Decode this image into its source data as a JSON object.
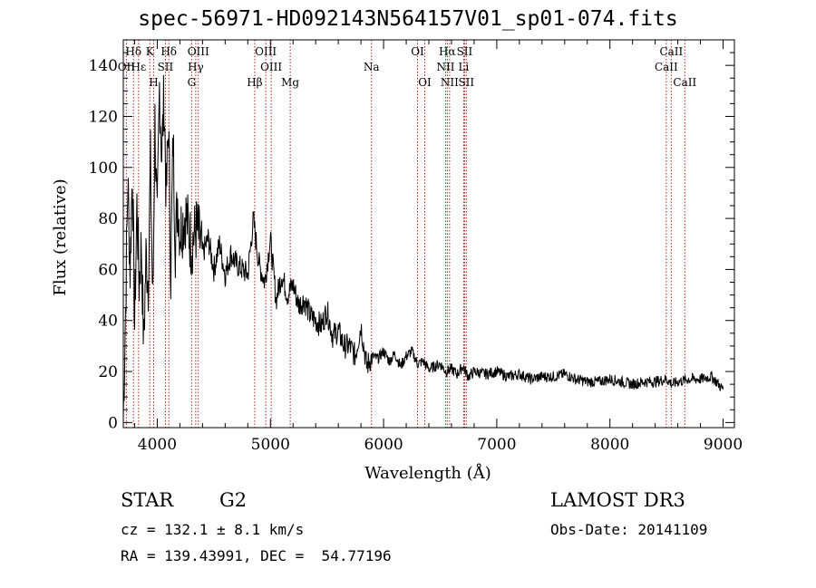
{
  "title": "spec-56971-HD092143N564157V01_sp01-074.fits",
  "footer": {
    "class_label": "STAR",
    "subclass": "G2",
    "cz": "cz = 132.1 ± 8.1 km/s",
    "radec": "RA = 139.43991, DEC =  54.77196",
    "survey": "LAMOST DR3",
    "obs_date": "Obs-Date: 20141109"
  },
  "chart_data": {
    "type": "line",
    "title": "spec-56971-HD092143N564157V01_sp01-074.fits",
    "xlabel": "Wavelength (Å)",
    "ylabel": "Flux (relative)",
    "xlim": [
      3700,
      9100
    ],
    "ylim": [
      -2,
      150
    ],
    "xticks": [
      4000,
      5000,
      6000,
      7000,
      8000,
      9000
    ],
    "yticks": [
      0,
      20,
      40,
      60,
      80,
      100,
      120,
      140
    ],
    "series": [
      {
        "name": "flux",
        "x": [
          3700,
          3720,
          3740,
          3760,
          3780,
          3800,
          3820,
          3840,
          3860,
          3880,
          3900,
          3920,
          3940,
          3960,
          3980,
          4000,
          4020,
          4040,
          4060,
          4080,
          4100,
          4120,
          4140,
          4160,
          4180,
          4200,
          4250,
          4300,
          4350,
          4400,
          4450,
          4500,
          4550,
          4600,
          4650,
          4700,
          4750,
          4800,
          4850,
          4870,
          4900,
          4950,
          5000,
          5050,
          5100,
          5150,
          5200,
          5250,
          5300,
          5350,
          5400,
          5450,
          5500,
          5550,
          5600,
          5650,
          5700,
          5750,
          5800,
          5850,
          5900,
          5950,
          6000,
          6050,
          6100,
          6150,
          6200,
          6250,
          6300,
          6350,
          6400,
          6450,
          6500,
          6550,
          6600,
          6650,
          6700,
          6750,
          6800,
          6900,
          7000,
          7100,
          7200,
          7300,
          7400,
          7500,
          7600,
          7700,
          7800,
          7900,
          8000,
          8100,
          8200,
          8300,
          8400,
          8500,
          8550,
          8600,
          8700,
          8800,
          8900,
          9000
        ],
        "y": [
          2,
          45,
          95,
          60,
          100,
          38,
          85,
          55,
          70,
          30,
          65,
          55,
          102,
          45,
          118,
          75,
          132,
          105,
          128,
          88,
          118,
          58,
          112,
          70,
          88,
          75,
          82,
          70,
          76,
          66,
          72,
          60,
          70,
          58,
          66,
          62,
          60,
          58,
          80,
          72,
          62,
          55,
          72,
          48,
          58,
          50,
          54,
          46,
          48,
          42,
          40,
          38,
          44,
          34,
          36,
          30,
          30,
          26,
          38,
          22,
          26,
          25,
          28,
          24,
          27,
          22,
          26,
          28,
          23,
          24,
          21,
          22,
          23,
          20,
          21,
          19,
          22,
          18,
          20,
          19,
          20,
          18,
          19,
          17,
          18,
          18,
          19,
          17,
          16,
          16,
          17,
          16,
          15,
          16,
          16,
          17,
          15,
          16,
          17,
          17,
          18,
          13
        ]
      }
    ],
    "lines": [
      {
        "label": "Hδ",
        "x": 3790,
        "row": 1
      },
      {
        "label": "K",
        "x": 3934,
        "row": 1
      },
      {
        "label": "Hδ",
        "x": 4102,
        "row": 1
      },
      {
        "label": "OIII",
        "x": 4363,
        "row": 1
      },
      {
        "label": "OIII",
        "x": 4959,
        "row": 1
      },
      {
        "label": "OI",
        "x": 6300,
        "row": 1
      },
      {
        "label": "Hα",
        "x": 6563,
        "row": 1
      },
      {
        "label": "SII",
        "x": 6716,
        "row": 1
      },
      {
        "label": "CaII",
        "x": 8542,
        "row": 1
      },
      {
        "label": "OII",
        "x": 3727,
        "row": 2
      },
      {
        "label": "Hε",
        "x": 3835,
        "row": 2
      },
      {
        "label": "SII",
        "x": 4072,
        "row": 2
      },
      {
        "label": "Hγ",
        "x": 4340,
        "row": 2
      },
      {
        "label": "OIII",
        "x": 5007,
        "row": 2
      },
      {
        "label": "Na",
        "x": 5893,
        "row": 2
      },
      {
        "label": "NII",
        "x": 6548,
        "row": 2
      },
      {
        "label": "Li",
        "x": 6708,
        "row": 2
      },
      {
        "label": "CaII",
        "x": 8498,
        "row": 2
      },
      {
        "label": "H",
        "x": 3968,
        "row": 3
      },
      {
        "label": "G",
        "x": 4304,
        "row": 3
      },
      {
        "label": "Hβ",
        "x": 4861,
        "row": 3
      },
      {
        "label": "Mg",
        "x": 5175,
        "row": 3
      },
      {
        "label": "OI",
        "x": 6364,
        "row": 3
      },
      {
        "label": "NII",
        "x": 6583,
        "row": 3
      },
      {
        "label": "SII",
        "x": 6731,
        "row": 3
      },
      {
        "label": "CaII",
        "x": 8662,
        "row": 3
      }
    ],
    "colors": {
      "spectrum": "#000000",
      "line_markers": "#b22222"
    }
  }
}
